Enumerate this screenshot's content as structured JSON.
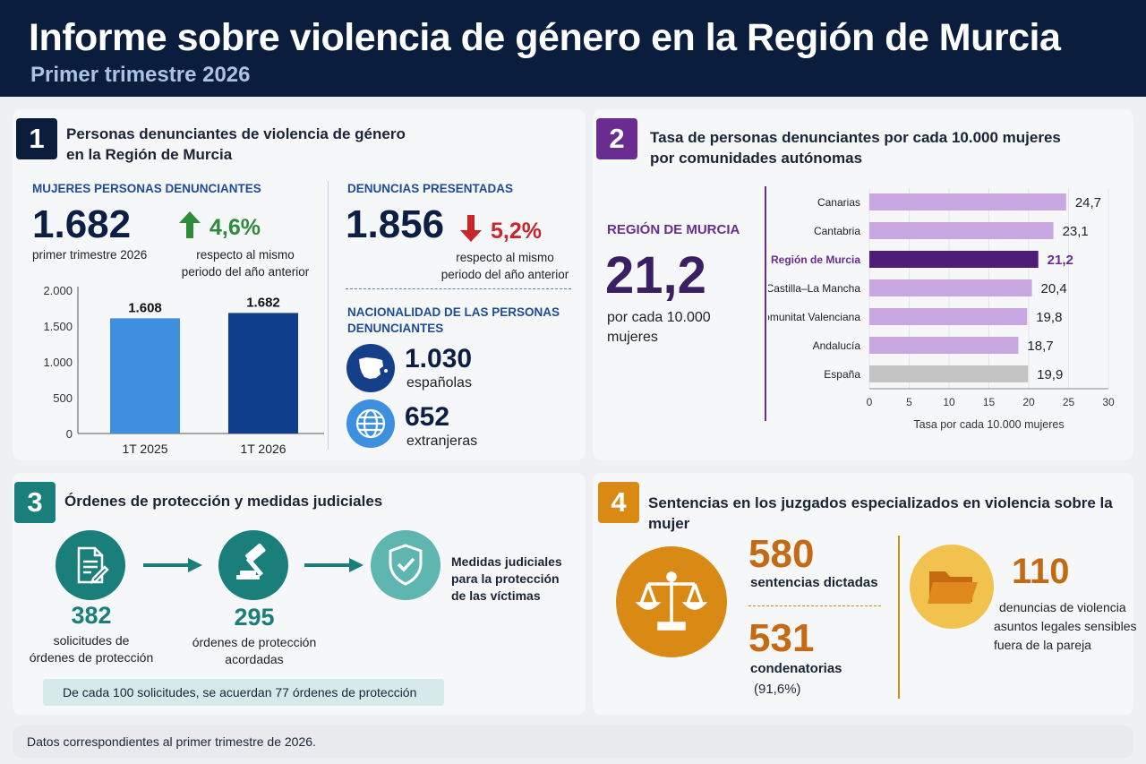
{
  "header": {
    "title": "Informe sobre violencia de género en la Región de Murcia",
    "subtitle": "Primer trimestre 2026"
  },
  "section1": {
    "number": "1",
    "title_line1": "Personas denunciantes de violencia de género",
    "title_line2": "en la Región de Murcia",
    "women_label": "MUJERES PERSONAS DENUNCIANTES",
    "women_value": "1.682",
    "women_caption": "primer trimestre 2026",
    "women_change": "4,6%",
    "women_change_note1": "respecto al mismo",
    "women_change_note2": "periodo del año anterior",
    "complaints_label": "DENUNCIAS PRESENTADAS",
    "complaints_value": "1.856",
    "complaints_change": "5,2%",
    "complaints_note1": "respecto al mismo",
    "complaints_note2": "periodo del año anterior",
    "nationality_label1": "NACIONALIDAD DE LAS PERSONAS",
    "nationality_label2": "DENUNCIANTES",
    "spanish_value": "1.030",
    "spanish_label": "españolas",
    "foreign_value": "652",
    "foreign_label": "extranjeras",
    "colors": {
      "up": "#2e8b3a",
      "down": "#c8262a",
      "bar_light": "#3f8fe0",
      "bar_dark": "#0f3e8c"
    }
  },
  "section2": {
    "number": "2",
    "title_line1": "Tasa de personas denunciantes por cada 10.000 mujeres",
    "title_line2": "por comunidades autónomas",
    "region_label": "REGIÓN DE MURCIA",
    "region_value": "21,2",
    "region_caption1": "por cada 10.000",
    "region_caption2": "mujeres",
    "colors": {
      "accent": "#6a2c91",
      "bar": "#c9a7e0",
      "highlight": "#4e1d7a",
      "spain": "#c4c4c4"
    }
  },
  "section3": {
    "number": "3",
    "title": "Órdenes de protección y medidas judiciales",
    "step1_value": "382",
    "step1_label1": "solicitudes de",
    "step1_label2": "órdenes de protección",
    "step2_value": "295",
    "step2_label1": "órdenes de protección",
    "step2_label2": "acordadas",
    "step3_label1": "Medidas judiciales",
    "step3_label2": "para la protección",
    "step3_label3": "de las víctimas",
    "note": "De cada 100 solicitudes, se acuerdan 77 órdenes de protección",
    "icons": [
      "document-icon",
      "gavel-icon",
      "shield-check-icon"
    ],
    "colors": {
      "teal": "#1a7f7a",
      "teal_light": "#5fb5b0"
    }
  },
  "section4": {
    "number": "4",
    "title": "Sentencias en los juzgados especializados en violencia sobre la mujer",
    "sentences_value": "580",
    "sentences_label": "sentencias dictadas",
    "convictions_value": "531",
    "convictions_label": "condenatorias",
    "convictions_pct": "(91,6%)",
    "other_value": "110",
    "other_label1": "denuncias de violencia",
    "other_label2": "asuntos legales sensibles",
    "other_label3": "fuera de la pareja",
    "icons": [
      "scales-icon",
      "folder-icon"
    ],
    "colors": {
      "orange": "#d88a14",
      "orange_text": "#c56a12",
      "yellow": "#f2c24e"
    }
  },
  "footer": {
    "text": "Datos correspondientes al primer trimestre de 2026."
  },
  "chart_data": [
    {
      "type": "bar",
      "categories": [
        "1T 2025",
        "1T 2026"
      ],
      "values": [
        1608,
        1682
      ],
      "value_labels": [
        "1.608",
        "1.682"
      ],
      "title": "",
      "xlabel": "",
      "ylabel": "",
      "ylim": [
        0,
        2000
      ],
      "yticks": [
        0,
        500,
        1000,
        1500,
        2000
      ],
      "ytick_labels": [
        "0",
        "500",
        "1.000",
        "1.500",
        "2.000"
      ]
    },
    {
      "type": "bar",
      "orientation": "horizontal",
      "categories": [
        "Canarias",
        "Cantabria",
        "Región de Murcia",
        "Castilla–La Mancha",
        "Comunitat Valenciana",
        "Andalucía",
        "España"
      ],
      "values": [
        24.7,
        23.1,
        21.2,
        20.4,
        19.8,
        18.7,
        19.9
      ],
      "value_labels": [
        "24,7",
        "23,1",
        "21,2",
        "20,4",
        "19,8",
        "18,7",
        "19,9"
      ],
      "highlight": "Región de Murcia",
      "xlabel": "Tasa por cada 10.000 mujeres",
      "xlim": [
        0,
        30
      ],
      "xticks": [
        0,
        5,
        10,
        15,
        20,
        25,
        30
      ]
    }
  ]
}
